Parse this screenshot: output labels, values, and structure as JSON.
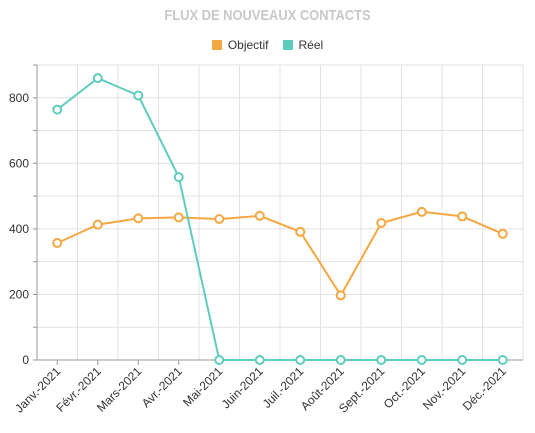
{
  "chart_data": {
    "type": "line",
    "title": "FLUX DE NOUVEAUX CONTACTS",
    "categories": [
      "Janv.-2021",
      "Févr.-2021",
      "Mars-2021",
      "Avr.-2021",
      "Mai-2021",
      "Juin-2021",
      "Juil.-2021",
      "Août-2021",
      "Sept.-2021",
      "Oct.-2021",
      "Nov.-2021",
      "Déc.-2021"
    ],
    "series": [
      {
        "name": "Objectif",
        "color": "#f5a742",
        "values": [
          357,
          413,
          432,
          435,
          430,
          440,
          391,
          197,
          418,
          452,
          438,
          385
        ]
      },
      {
        "name": "Réel",
        "color": "#5ecdbd",
        "values": [
          764,
          860,
          807,
          558,
          0,
          0,
          0,
          0,
          0,
          0,
          0,
          0
        ]
      }
    ],
    "ylim": [
      0,
      900
    ],
    "yticks": [
      0,
      200,
      400,
      600,
      800
    ],
    "grid": true,
    "legend_position": "top-center"
  }
}
